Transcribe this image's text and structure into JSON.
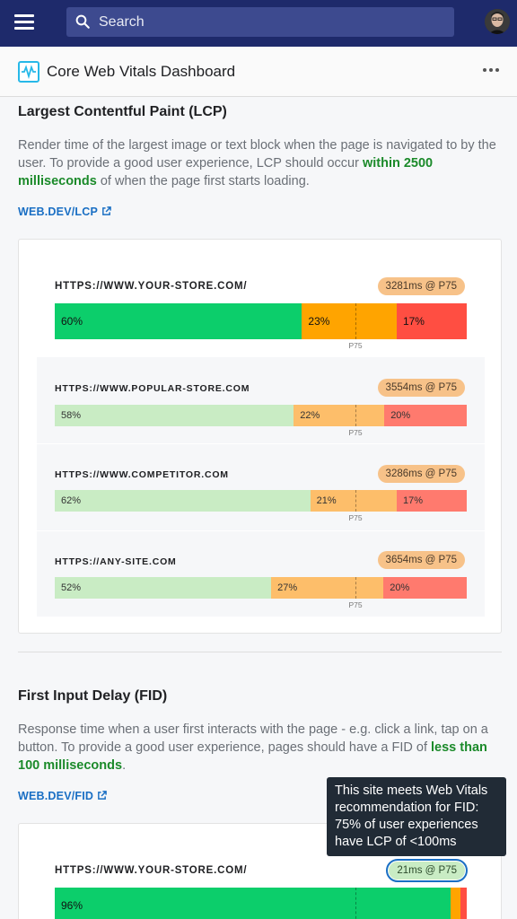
{
  "header": {
    "search_placeholder": "Search",
    "menu_icon": "hamburger-icon",
    "search_icon": "search-icon"
  },
  "titlebar": {
    "title": "Core Web Vitals Dashboard",
    "more_icon": "more-horizontal-icon"
  },
  "lcp": {
    "title": "Largest Contentful Paint (LCP)",
    "desc_before": "Render time of the largest image or text block when the page is navigated to by the user. To provide a good user experience, LCP should occur ",
    "desc_highlight": "within 2500 milliseconds",
    "desc_after": " of when the page first starts loading.",
    "link": "WEB.DEV/LCP",
    "sites": [
      {
        "url": "HTTPS://WWW.YOUR-STORE.COM/",
        "badge": "3281ms @ P75",
        "good": 60,
        "ni": 23,
        "poor": 17,
        "good_label": "60%",
        "ni_label": "23%",
        "poor_label": "17%",
        "p75": "P75",
        "p75_at": 73
      },
      {
        "url": "HTTPS://WWW.POPULAR-STORE.COM",
        "badge": "3554ms @ P75",
        "good": 58,
        "ni": 22,
        "poor": 20,
        "good_label": "58%",
        "ni_label": "22%",
        "poor_label": "20%",
        "p75": "P75",
        "p75_at": 73
      },
      {
        "url": "HTTPS://WWW.COMPETITOR.COM",
        "badge": "3286ms @ P75",
        "good": 62,
        "ni": 21,
        "poor": 17,
        "good_label": "62%",
        "ni_label": "21%",
        "poor_label": "17%",
        "p75": "P75",
        "p75_at": 73
      },
      {
        "url": "HTTPS://ANY-SITE.COM",
        "badge": "3654ms @ P75",
        "good": 52,
        "ni": 27,
        "poor": 20,
        "good_label": "52%",
        "ni_label": "27%",
        "poor_label": "20%",
        "p75": "P75",
        "p75_at": 73
      }
    ]
  },
  "fid": {
    "title": "First Input Delay (FID)",
    "desc_before": "Response time when a user first interacts with the page - e.g. click a link, tap on a button. To provide a good user experience, pages should have a FID of ",
    "desc_highlight": "less than 100 milliseconds",
    "desc_after": ".",
    "link": "WEB.DEV/FID",
    "sites": [
      {
        "url": "HTTPS://WWW.YOUR-STORE.COM/",
        "badge": "21ms @ P75",
        "good": 96,
        "ni": 2.5,
        "poor": 1,
        "good_label": "96%",
        "p75_at": 73
      }
    ],
    "tooltip": "This site meets Web Vitals recommendation for FID: 75% of user experiences have LCP of <100ms"
  },
  "colors": {
    "good_strong": "#0cce6b",
    "ni_strong": "#ffa400",
    "poor_strong": "#ff4e42",
    "good_soft": "#c9ecc4",
    "ni_soft": "#fdbe6a",
    "poor_soft": "#ff7a6e",
    "header_bg": "#1e2a6b"
  }
}
